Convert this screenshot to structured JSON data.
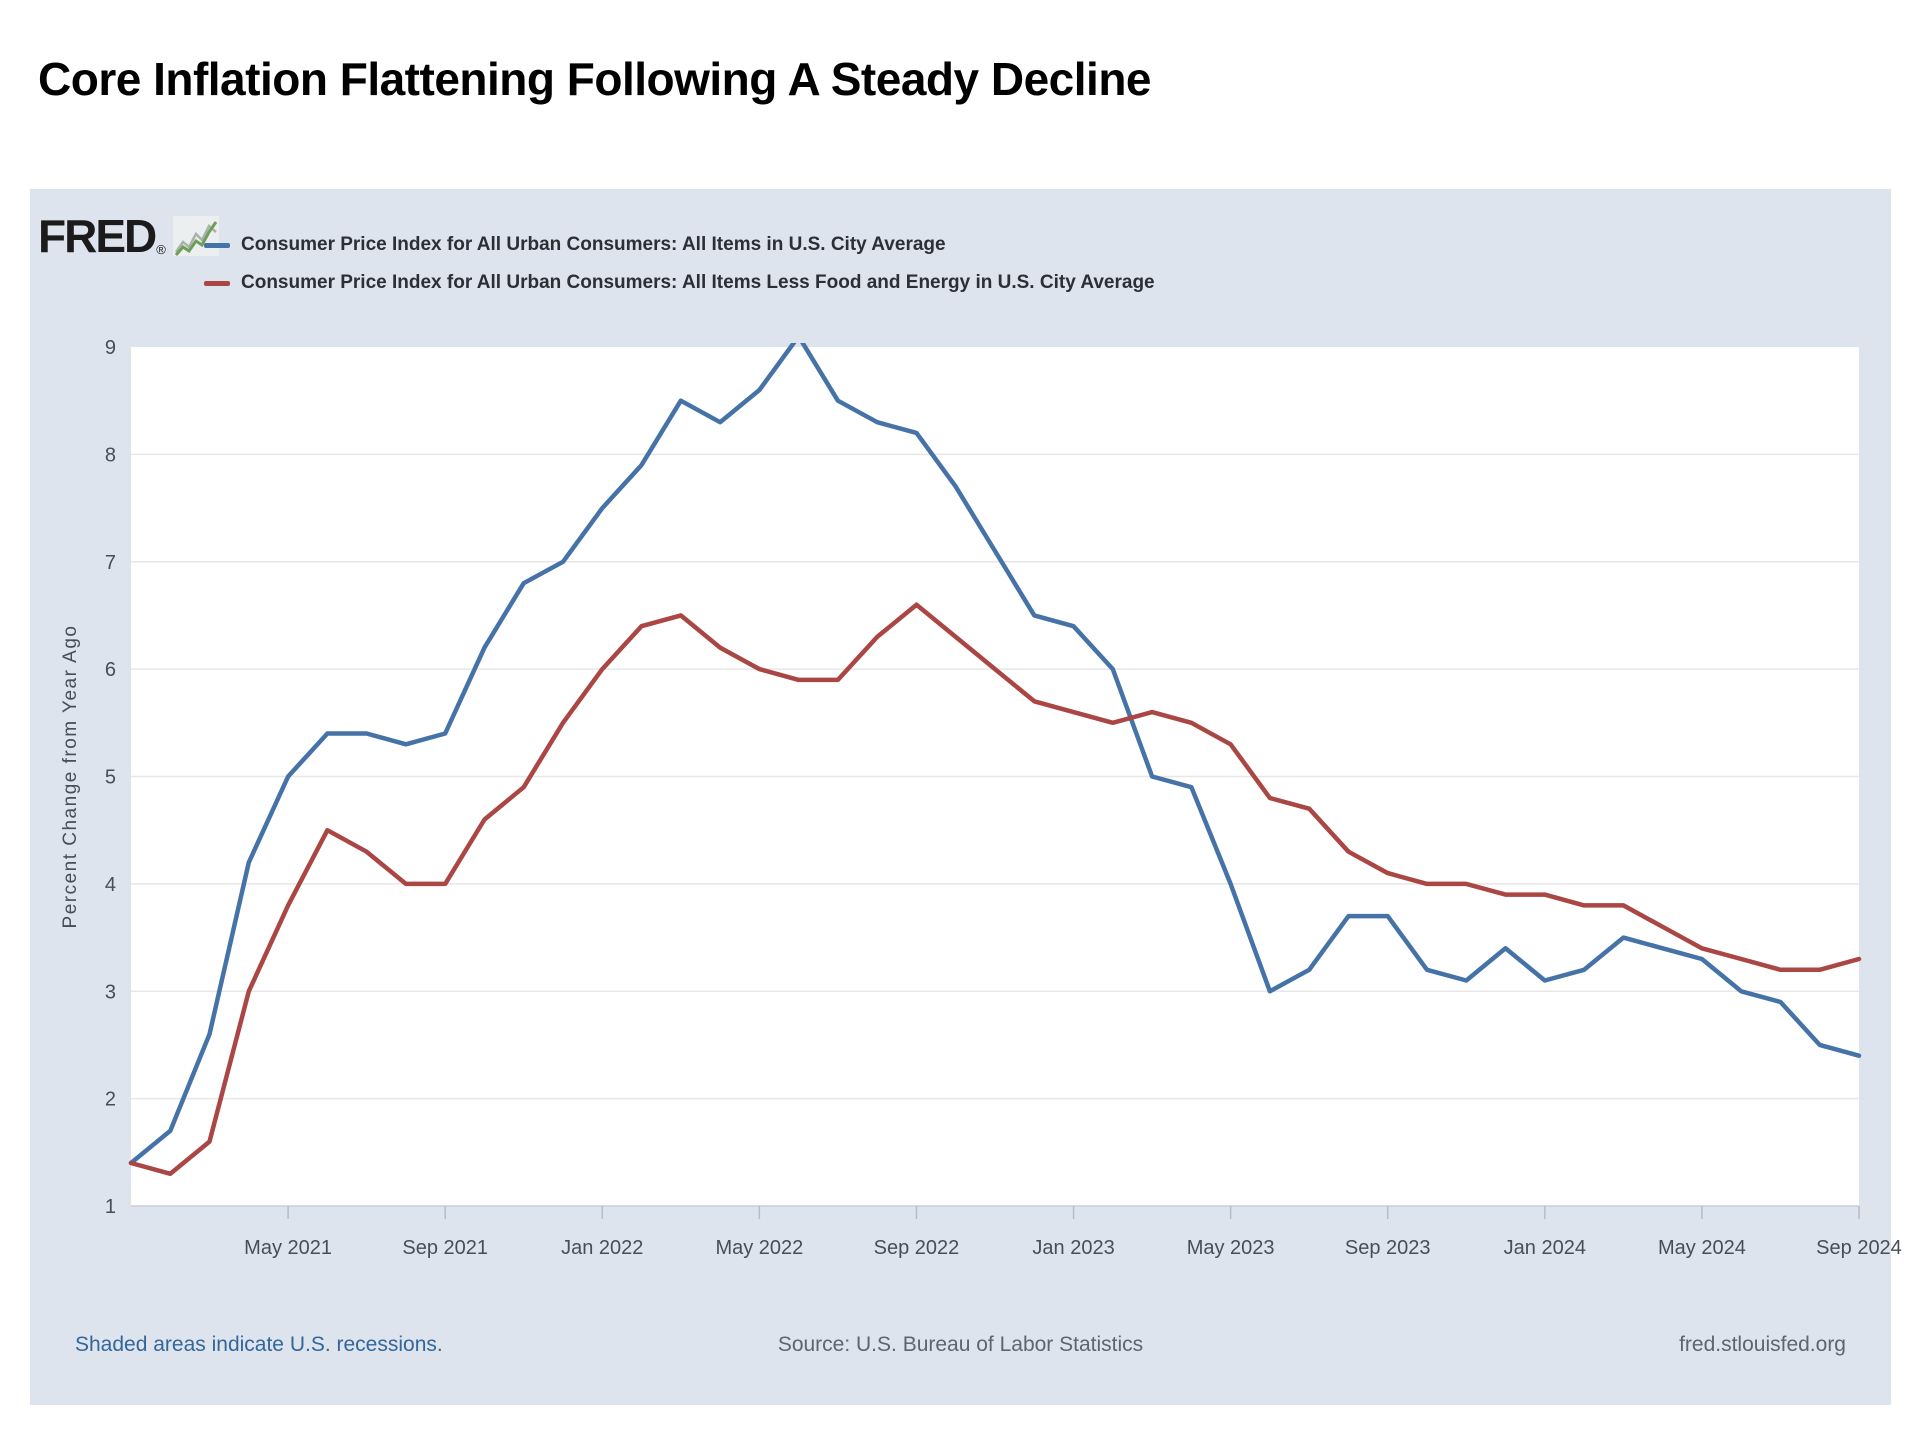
{
  "page": {
    "title": "Core Inflation Flattening Following A Steady Decline"
  },
  "chart": {
    "brand": "FRED",
    "registered": "®",
    "legend": [
      {
        "label": "Consumer Price Index for All Urban Consumers: All Items in U.S. City Average",
        "color": "#4572a7"
      },
      {
        "label": "Consumer Price Index for All Urban Consumers: All Items Less Food and Energy in U.S. City Average",
        "color": "#aa4643"
      }
    ],
    "footer": {
      "recessions_note": "Shaded areas indicate U.S. recessions.",
      "source": "Source: U.S. Bureau of Labor Statistics",
      "site": "fred.stlouisfed.org"
    },
    "colors": {
      "card_background": "#dde4ee",
      "plot_background": "#ffffff",
      "gridline": "#e7e7e7",
      "axis_text": "#474e58",
      "link_blue": "#336699",
      "series_all_items": "#4572a7",
      "series_core": "#aa4643"
    }
  },
  "chart_data": {
    "type": "line",
    "title": "Core Inflation Flattening Following A Steady Decline",
    "xlabel": "",
    "ylabel": "Percent Change from Year Ago",
    "ylim": [
      1,
      9
    ],
    "yticks": [
      1,
      2,
      3,
      4,
      5,
      6,
      7,
      8,
      9
    ],
    "grid": true,
    "legend_position": "top",
    "x": [
      "Jan 2021",
      "Feb 2021",
      "Mar 2021",
      "Apr 2021",
      "May 2021",
      "Jun 2021",
      "Jul 2021",
      "Aug 2021",
      "Sep 2021",
      "Oct 2021",
      "Nov 2021",
      "Dec 2021",
      "Jan 2022",
      "Feb 2022",
      "Mar 2022",
      "Apr 2022",
      "May 2022",
      "Jun 2022",
      "Jul 2022",
      "Aug 2022",
      "Sep 2022",
      "Oct 2022",
      "Nov 2022",
      "Dec 2022",
      "Jan 2023",
      "Feb 2023",
      "Mar 2023",
      "Apr 2023",
      "May 2023",
      "Jun 2023",
      "Jul 2023",
      "Aug 2023",
      "Sep 2023",
      "Oct 2023",
      "Nov 2023",
      "Dec 2023",
      "Jan 2024",
      "Feb 2024",
      "Mar 2024",
      "Apr 2024",
      "May 2024",
      "Jun 2024",
      "Jul 2024",
      "Aug 2024",
      "Sep 2024"
    ],
    "xtick_labels": [
      "May 2021",
      "Sep 2021",
      "Jan 2022",
      "May 2022",
      "Sep 2022",
      "Jan 2023",
      "May 2023",
      "Sep 2023",
      "Jan 2024",
      "May 2024",
      "Sep 2024"
    ],
    "xtick_indices": [
      4,
      8,
      12,
      16,
      20,
      24,
      28,
      32,
      36,
      40,
      44
    ],
    "series": [
      {
        "name": "Consumer Price Index for All Urban Consumers: All Items in U.S. City Average",
        "color": "#4572a7",
        "values": [
          1.4,
          1.7,
          2.6,
          4.2,
          5.0,
          5.4,
          5.4,
          5.3,
          5.4,
          6.2,
          6.8,
          7.0,
          7.5,
          7.9,
          8.5,
          8.3,
          8.6,
          9.1,
          8.5,
          8.3,
          8.2,
          7.7,
          7.1,
          6.5,
          6.4,
          6.0,
          5.0,
          4.9,
          4.0,
          3.0,
          3.2,
          3.7,
          3.7,
          3.2,
          3.1,
          3.4,
          3.1,
          3.2,
          3.5,
          3.4,
          3.3,
          3.0,
          2.9,
          2.5,
          2.4
        ]
      },
      {
        "name": "Consumer Price Index for All Urban Consumers: All Items Less Food and Energy in U.S. City Average",
        "color": "#aa4643",
        "values": [
          1.4,
          1.3,
          1.6,
          3.0,
          3.8,
          4.5,
          4.3,
          4.0,
          4.0,
          4.6,
          4.9,
          5.5,
          6.0,
          6.4,
          6.5,
          6.2,
          6.0,
          5.9,
          5.9,
          6.3,
          6.6,
          6.3,
          6.0,
          5.7,
          5.6,
          5.5,
          5.6,
          5.5,
          5.3,
          4.8,
          4.7,
          4.3,
          4.1,
          4.0,
          4.0,
          3.9,
          3.9,
          3.8,
          3.8,
          3.6,
          3.4,
          3.3,
          3.2,
          3.2,
          3.3
        ]
      }
    ]
  }
}
